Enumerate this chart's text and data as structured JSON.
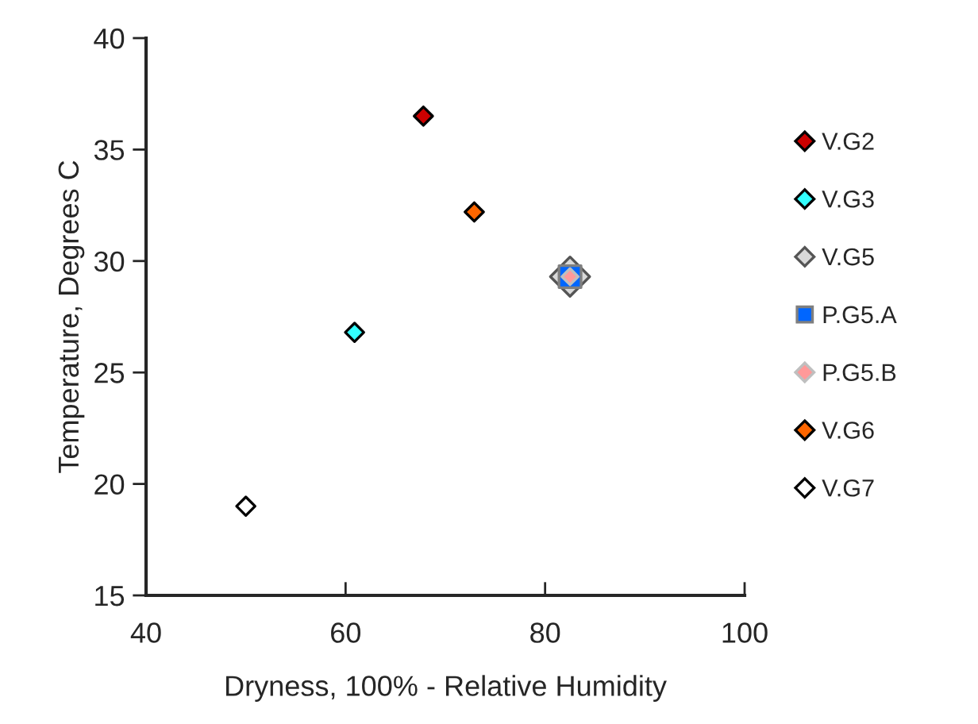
{
  "chart_data": {
    "type": "scatter",
    "xlabel": "Dryness, 100% - Relative Humidity",
    "ylabel": "Temperature, Degrees C",
    "xlim": [
      40,
      100
    ],
    "xticks": [
      40,
      60,
      80,
      100
    ],
    "ylim": [
      15,
      40
    ],
    "yticks": [
      15,
      20,
      25,
      30,
      35,
      40
    ],
    "grid": false,
    "legend": "right",
    "series": [
      {
        "name": "V.G2",
        "color": "#cc0000",
        "marker": "diamond",
        "x": [
          67.8
        ],
        "values": [
          36.5
        ]
      },
      {
        "name": "V.G3",
        "color": "#33ffff",
        "marker": "diamond",
        "x": [
          60.9
        ],
        "values": [
          26.8
        ]
      },
      {
        "name": "V.G5",
        "color": "#d9d9d9",
        "marker": "diamond",
        "x": [
          82.5
        ],
        "values": [
          29.3
        ]
      },
      {
        "name": "P.G5.A",
        "color": "#0066ff",
        "marker": "square",
        "x": [
          82.5
        ],
        "values": [
          29.3
        ]
      },
      {
        "name": "P.G5.B",
        "color": "#ff9999",
        "marker": "diamond",
        "x": [
          82.5
        ],
        "values": [
          29.3
        ]
      },
      {
        "name": "V.G6",
        "color": "#ff6600",
        "marker": "diamond",
        "x": [
          72.9
        ],
        "values": [
          32.2
        ]
      },
      {
        "name": "V.G7",
        "color": "#ffffff",
        "marker": "diamond",
        "x": [
          50.0
        ],
        "values": [
          19.0
        ]
      }
    ]
  }
}
